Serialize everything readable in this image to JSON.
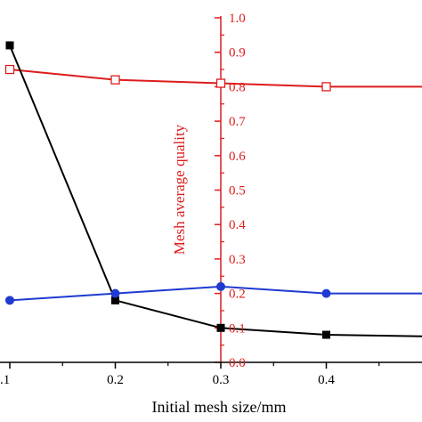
{
  "chart_data": {
    "type": "line",
    "title": "",
    "xlabel": "Initial mesh size/mm",
    "ylabel": "Mesh average quality",
    "x_ticks": [
      0.1,
      0.2,
      0.3,
      0.4
    ],
    "x_tick_labels": [
      ".1",
      "0.2",
      "0.3",
      "0.4"
    ],
    "xlim": [
      0.1,
      0.5
    ],
    "ylim": [
      0.0,
      1.0
    ],
    "y_ticks": [
      0.0,
      0.1,
      0.2,
      0.3,
      0.4,
      0.5,
      0.6,
      0.7,
      0.8,
      0.9,
      1.0
    ],
    "y_tick_labels": [
      "0.0",
      "0.1",
      "0.2",
      "0.3",
      "0.4",
      "0.5",
      "0.6",
      "0.7",
      "0.8",
      "0.9",
      "1.0"
    ],
    "grid": false,
    "legend": "none",
    "series": [
      {
        "color": "#dd1c1c",
        "marker": "open-square",
        "x": [
          0.1,
          0.2,
          0.3,
          0.4,
          0.5
        ],
        "values": [
          0.85,
          0.82,
          0.81,
          0.8,
          0.8
        ]
      },
      {
        "color": "#000000",
        "marker": "filled-square",
        "x": [
          0.1,
          0.2,
          0.3,
          0.4,
          0.5
        ],
        "values": [
          0.92,
          0.18,
          0.1,
          0.08,
          0.075
        ]
      },
      {
        "color": "#1f3ad0",
        "marker": "filled-circle",
        "x": [
          0.1,
          0.2,
          0.3,
          0.4,
          0.5
        ],
        "values": [
          0.18,
          0.2,
          0.22,
          0.2,
          0.2
        ]
      }
    ],
    "colors": {
      "axis_right": "#dd1c1c",
      "axis_bottom": "#000000"
    }
  }
}
